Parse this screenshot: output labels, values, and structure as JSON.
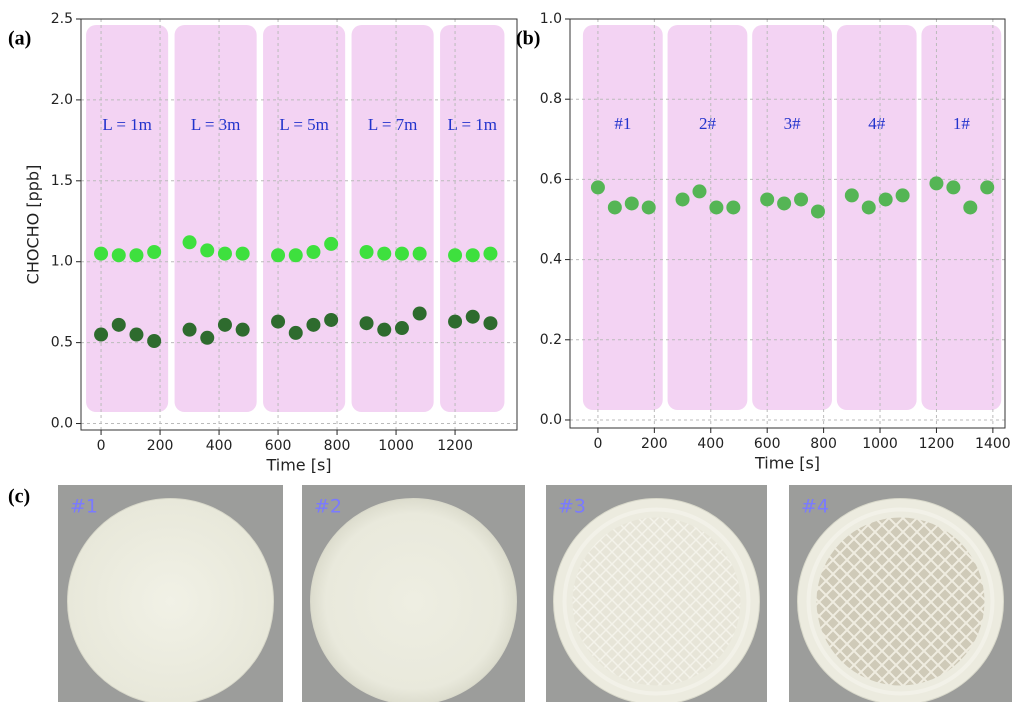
{
  "chart_data": [
    {
      "type": "scatter",
      "label": "(a)",
      "xlabel": "Time [s]",
      "ylabel": "CHOCHO [ppb]",
      "xlim": [
        -68,
        1410
      ],
      "ylim": [
        -0.04,
        2.5
      ],
      "xticks": [
        0,
        200,
        400,
        600,
        800,
        1000,
        1200
      ],
      "yticks": [
        {
          "value": 0,
          "label": "0.0"
        },
        {
          "value": 0.5,
          "label": "0.5"
        },
        {
          "value": 1,
          "label": "1.0"
        },
        {
          "value": 1.5,
          "label": "1.5"
        },
        {
          "value": 2,
          "label": "2.0"
        },
        {
          "value": 2.5,
          "label": "2.5"
        }
      ],
      "grid": true,
      "span_color": "#f3d3f3",
      "annotations": [
        "L = 1m",
        "L = 3m",
        "L = 5m",
        "L = 7m",
        "L = 1m"
      ],
      "series": [
        {
          "color": "#3ee03e",
          "x": [
            0,
            60,
            120,
            180,
            300,
            360,
            420,
            480,
            600,
            660,
            720,
            780,
            900,
            960,
            1020,
            1080,
            1200,
            1260,
            1320
          ],
          "values": [
            1.05,
            1.04,
            1.04,
            1.06,
            1.12,
            1.07,
            1.05,
            1.05,
            1.04,
            1.04,
            1.06,
            1.11,
            1.06,
            1.05,
            1.05,
            1.05,
            1.04,
            1.04,
            1.05
          ]
        },
        {
          "color": "#2e6b2e",
          "x": [
            0,
            60,
            120,
            180,
            300,
            360,
            420,
            480,
            600,
            660,
            720,
            780,
            900,
            960,
            1020,
            1080,
            1200,
            1260,
            1320
          ],
          "values": [
            0.55,
            0.61,
            0.55,
            0.51,
            0.58,
            0.53,
            0.61,
            0.58,
            0.63,
            0.56,
            0.61,
            0.64,
            0.62,
            0.58,
            0.59,
            0.68,
            0.63,
            0.66,
            0.62
          ]
        }
      ]
    },
    {
      "type": "scatter",
      "label": "(b)",
      "xlabel": "Time [s]",
      "xlim": [
        -99,
        1443
      ],
      "ylim": [
        -0.02,
        1.0
      ],
      "xticks": [
        0,
        200,
        400,
        600,
        800,
        1000,
        1200,
        1400
      ],
      "yticks": [
        {
          "value": 0,
          "label": "0.0"
        },
        {
          "value": 0.2,
          "label": "0.2"
        },
        {
          "value": 0.4,
          "label": "0.4"
        },
        {
          "value": 0.6,
          "label": "0.6"
        },
        {
          "value": 0.8,
          "label": "0.8"
        },
        {
          "value": 1,
          "label": "1.0"
        }
      ],
      "grid": true,
      "span_color": "#f3d3f3",
      "annotations": [
        "#1",
        "2#",
        "3#",
        "4#",
        "1#"
      ],
      "series": [
        {
          "color": "#55b555",
          "x": [
            0,
            60,
            120,
            180,
            300,
            360,
            420,
            480,
            600,
            660,
            720,
            780,
            900,
            960,
            1020,
            1080,
            1200,
            1260,
            1320,
            1380
          ],
          "values": [
            0.58,
            0.53,
            0.54,
            0.53,
            0.55,
            0.57,
            0.53,
            0.53,
            0.55,
            0.54,
            0.55,
            0.52,
            0.56,
            0.53,
            0.55,
            0.56,
            0.59,
            0.58,
            0.53,
            0.58
          ]
        }
      ]
    }
  ],
  "photos": {
    "label": "(c)",
    "items": [
      "#1",
      "#2",
      "#3",
      "#4"
    ]
  }
}
